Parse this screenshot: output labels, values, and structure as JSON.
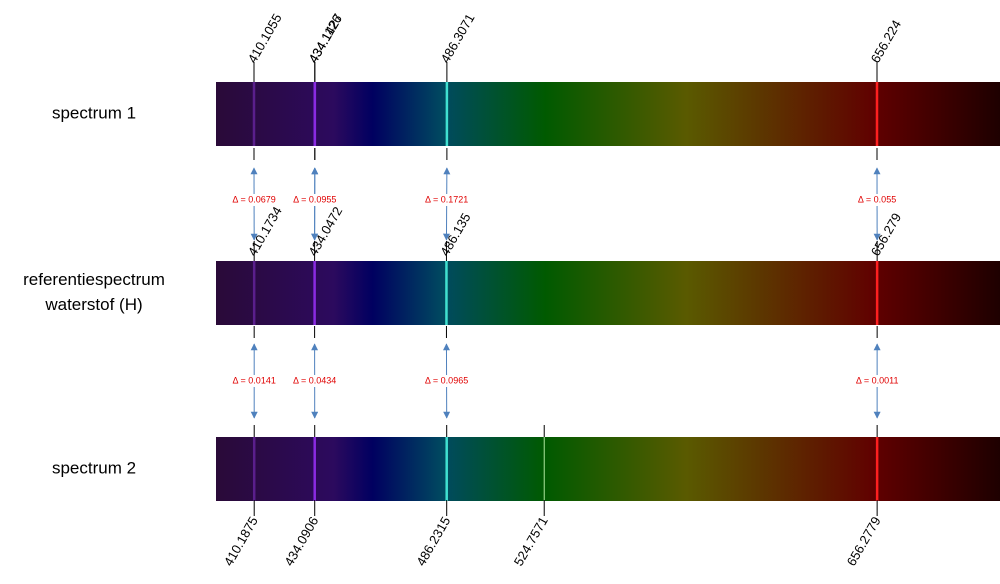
{
  "spectra": [
    {
      "label": [
        "spectrum 1"
      ],
      "lines": [
        410.1055,
        434.1126,
        434.1427,
        486.3071,
        656.224
      ]
    },
    {
      "label": [
        "referentiespectrum",
        "waterstof (H)"
      ],
      "lines": [
        410.1734,
        434.0472,
        486.135,
        656.279
      ]
    },
    {
      "label": [
        "spectrum 2"
      ],
      "lines": [
        410.1875,
        434.0906,
        486.2315,
        524.7571,
        656.2779
      ]
    }
  ],
  "deltas": [
    [
      "Δ = 0.0679",
      "Δ = 0.0654",
      "Δ = 0.0955",
      "Δ = 0.1721",
      "Δ = 0.055"
    ],
    [
      "Δ = 0.0141",
      "Δ = 0.0434",
      "Δ = 0.0965",
      "Δ = 0.0011"
    ]
  ]
}
